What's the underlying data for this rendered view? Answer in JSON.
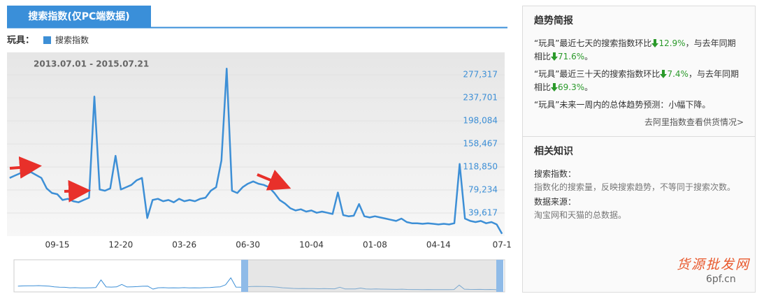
{
  "tab": "搜索指数(仅PC端数据)",
  "legend_prefix": "玩具：",
  "chart_data": {
    "type": "line",
    "subtitle": "2013.07.01 - 2015.07.21",
    "categories": [
      null,
      null,
      null,
      null,
      null,
      null,
      null,
      null,
      null,
      "09-15",
      null,
      null,
      null,
      null,
      null,
      null,
      null,
      null,
      null,
      null,
      null,
      "12-20",
      null,
      null,
      null,
      null,
      null,
      null,
      null,
      null,
      null,
      null,
      null,
      "03-26",
      null,
      null,
      null,
      null,
      null,
      null,
      null,
      null,
      null,
      null,
      null,
      "06-30",
      null,
      null,
      null,
      null,
      null,
      null,
      null,
      null,
      null,
      null,
      null,
      "10-04",
      null,
      null,
      null,
      null,
      null,
      null,
      null,
      null,
      null,
      null,
      null,
      "01-08",
      null,
      null,
      null,
      null,
      null,
      null,
      null,
      null,
      null,
      null,
      null,
      "04-14",
      null,
      null,
      null,
      null,
      null,
      null,
      null,
      null,
      null,
      null,
      null,
      "07-1"
    ],
    "series": [
      {
        "name": "搜索指数",
        "color": "#3d8fd6",
        "values": [
          100000,
          104000,
          108000,
          106000,
          110000,
          105000,
          100000,
          82000,
          74000,
          72000,
          62000,
          64000,
          60000,
          58000,
          62000,
          66000,
          240000,
          80000,
          78000,
          82000,
          138000,
          80000,
          84000,
          88000,
          96000,
          100000,
          31000,
          62000,
          64000,
          60000,
          62000,
          58000,
          64000,
          60000,
          62000,
          60000,
          64000,
          66000,
          78000,
          84000,
          130000,
          288000,
          78000,
          74000,
          84000,
          90000,
          94000,
          90000,
          88000,
          84000,
          74000,
          62000,
          56000,
          48000,
          44000,
          46000,
          42000,
          44000,
          40000,
          42000,
          40000,
          38000,
          75000,
          36000,
          34000,
          35000,
          55000,
          34000,
          32000,
          34000,
          32000,
          30000,
          28000,
          26000,
          30000,
          24000,
          22000,
          22000,
          21000,
          22000,
          21000,
          20000,
          21000,
          20000,
          22000,
          124000,
          30000,
          26000,
          24000,
          26000,
          22000,
          24000,
          20000,
          4000
        ]
      }
    ],
    "ylim": [
      0,
      316000
    ],
    "yticks": [
      {
        "value": 39617,
        "label": "39,617"
      },
      {
        "value": 79234,
        "label": "79,234"
      },
      {
        "value": 118850,
        "label": "118,850"
      },
      {
        "value": 158467,
        "label": "158,467"
      },
      {
        "value": 198084,
        "label": "198,084"
      },
      {
        "value": 237701,
        "label": "237,701"
      },
      {
        "value": 277317,
        "label": "277,317"
      }
    ]
  },
  "sidebar": {
    "brief_title": "趋势简报",
    "briefs": [
      {
        "text1": "“玩具”最近七天的搜索指数环比",
        "pct1": "12.9%",
        "text2": "，与去年同期相比",
        "pct2": "71.6%",
        "end": "。"
      },
      {
        "text1": "“玩具”最近三十天的搜索指数环比",
        "pct1": "7.4%",
        "text2": "，与去年同期相比",
        "pct2": "69.3%",
        "end": "。"
      }
    ],
    "forecast": "“玩具”未来一周内的总体趋势预测：小幅下降。",
    "link": "去阿里指数查看供货情况>",
    "knowledge_title": "相关知识",
    "items": [
      {
        "term": "搜索指数：",
        "desc": "指数化的搜索量，反映搜索趋势，不等同于搜索次数。"
      },
      {
        "term": "数据来源：",
        "desc": "淘宝网和天猫的总数据。"
      }
    ]
  },
  "watermark": {
    "name": "货源批发网",
    "site": "6pf.cn"
  }
}
